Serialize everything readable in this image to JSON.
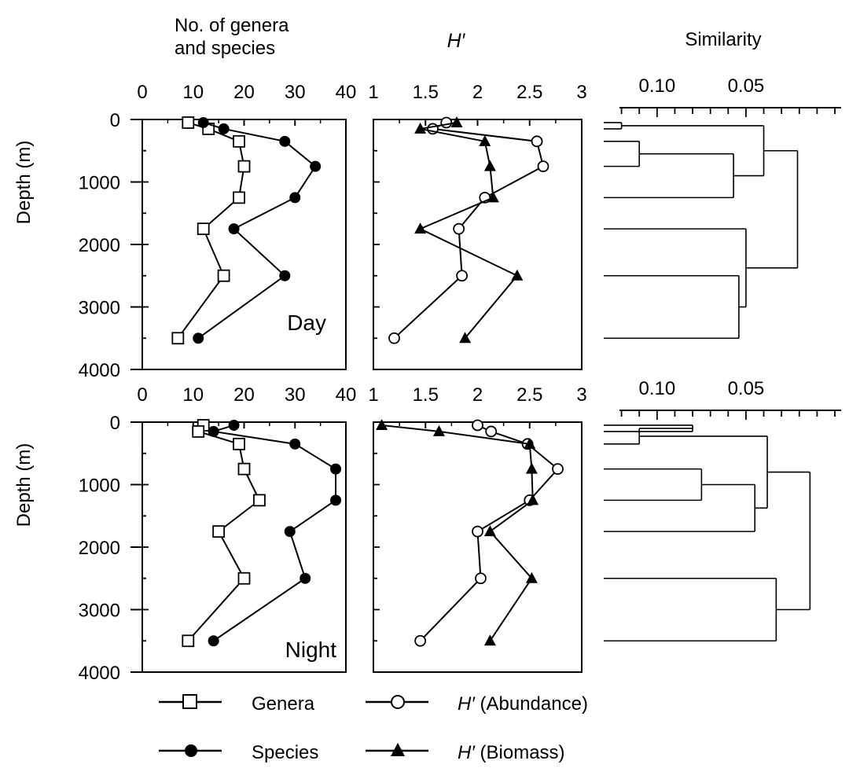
{
  "headers": {
    "count_line1": "No. of genera",
    "count_line2": "and species",
    "diversity": "H′",
    "similarity": "Similarity"
  },
  "axes": {
    "depth_label": "Depth (m)",
    "depth_ticks": [
      "0",
      "1000",
      "2000",
      "3000",
      "4000"
    ],
    "count_ticks": [
      "0",
      "10",
      "20",
      "30",
      "40"
    ],
    "h_ticks": [
      "1",
      "1.5",
      "2",
      "2.5",
      "3"
    ],
    "similarity_ticks": [
      "0.10",
      "0.05"
    ]
  },
  "legend": {
    "genera": "Genera",
    "species": "Species",
    "h_abundance_symbol": "H′",
    "h_abundance_text": "(Abundance)",
    "h_biomass_symbol": "H′",
    "h_biomass_text": "(Biomass)"
  },
  "chart_data": [
    {
      "type": "line",
      "panel": "Day",
      "label": "Day",
      "xlabel": "No. of genera and species",
      "ylabel": "Depth (m)",
      "xlim": [
        0,
        40
      ],
      "ylim": [
        4000,
        0
      ],
      "series": [
        {
          "name": "Genera",
          "marker": "open-square",
          "x": [
            9,
            13,
            19,
            20,
            19,
            12,
            16,
            7
          ],
          "depth": [
            50,
            150,
            350,
            750,
            1250,
            1750,
            2500,
            3500
          ]
        },
        {
          "name": "Species",
          "marker": "filled-circle",
          "x": [
            12,
            16,
            28,
            34,
            30,
            18,
            28,
            11
          ],
          "depth": [
            50,
            150,
            350,
            750,
            1250,
            1750,
            2500,
            3500
          ]
        }
      ]
    },
    {
      "type": "line",
      "panel": "Day",
      "xlabel": "H′",
      "ylabel": "Depth (m)",
      "xlim": [
        1,
        3
      ],
      "ylim": [
        4000,
        0
      ],
      "series": [
        {
          "name": "H′ (Abundance)",
          "marker": "open-circle",
          "x": [
            1.7,
            1.57,
            2.57,
            2.63,
            2.07,
            1.82,
            1.85,
            1.2
          ],
          "depth": [
            50,
            150,
            350,
            750,
            1250,
            1750,
            2500,
            3500
          ]
        },
        {
          "name": "H′ (Biomass)",
          "marker": "filled-triangle",
          "x": [
            1.8,
            1.45,
            2.07,
            2.12,
            2.15,
            1.45,
            2.38,
            1.88
          ],
          "depth": [
            50,
            150,
            350,
            750,
            1250,
            1750,
            2500,
            3500
          ]
        }
      ]
    },
    {
      "type": "dendrogram",
      "panel": "Day",
      "xlabel": "Similarity",
      "xlim": [
        0.13,
        0.0
      ],
      "leaf_depths": [
        50,
        150,
        350,
        750,
        1250,
        1750,
        2500,
        3500
      ],
      "merges": [
        {
          "leaves": [
            50,
            150
          ],
          "similarity": 0.12
        },
        {
          "leaves": [
            350,
            750
          ],
          "similarity": 0.11
        },
        {
          "leaves": [
            350,
            750,
            1250
          ],
          "similarity": 0.057
        },
        {
          "leaves": [
            50,
            150,
            350,
            750,
            1250
          ],
          "similarity": 0.04
        },
        {
          "leaves": [
            2500,
            3500
          ],
          "similarity": 0.054
        },
        {
          "leaves": [
            1750,
            2500,
            3500
          ],
          "similarity": 0.05
        },
        {
          "leaves": [
            50,
            150,
            350,
            750,
            1250,
            1750,
            2500,
            3500
          ],
          "similarity": 0.021
        }
      ]
    },
    {
      "type": "line",
      "panel": "Night",
      "label": "Night",
      "xlabel": "No. of genera and species",
      "ylabel": "Depth (m)",
      "xlim": [
        0,
        40
      ],
      "ylim": [
        4000,
        0
      ],
      "series": [
        {
          "name": "Genera",
          "marker": "open-square",
          "x": [
            12,
            11,
            19,
            20,
            23,
            15,
            20,
            9
          ],
          "depth": [
            50,
            150,
            350,
            750,
            1250,
            1750,
            2500,
            3500
          ]
        },
        {
          "name": "Species",
          "marker": "filled-circle",
          "x": [
            18,
            14,
            30,
            38,
            38,
            29,
            32,
            14
          ],
          "depth": [
            50,
            150,
            350,
            750,
            1250,
            1750,
            2500,
            3500
          ]
        }
      ]
    },
    {
      "type": "line",
      "panel": "Night",
      "xlabel": "H′",
      "ylabel": "Depth (m)",
      "xlim": [
        1,
        3
      ],
      "ylim": [
        4000,
        0
      ],
      "series": [
        {
          "name": "H′ (Abundance)",
          "marker": "open-circle",
          "x": [
            2.0,
            2.13,
            2.48,
            2.77,
            2.5,
            2.0,
            2.03,
            1.45
          ],
          "depth": [
            50,
            150,
            350,
            750,
            1250,
            1750,
            2500,
            3500
          ]
        },
        {
          "name": "H′ (Biomass)",
          "marker": "filled-triangle",
          "x": [
            1.08,
            1.63,
            2.5,
            2.52,
            2.53,
            2.12,
            2.52,
            2.12
          ],
          "depth": [
            50,
            150,
            350,
            750,
            1250,
            1750,
            2500,
            3500
          ]
        }
      ]
    },
    {
      "type": "dendrogram",
      "panel": "Night",
      "xlabel": "Similarity",
      "xlim": [
        0.13,
        0.0
      ],
      "leaf_depths": [
        50,
        150,
        350,
        750,
        1250,
        1750,
        2500,
        3500
      ],
      "merges": [
        {
          "leaves": [
            50,
            150
          ],
          "similarity": 0.08
        },
        {
          "leaves": [
            50,
            150,
            350
          ],
          "similarity": 0.11
        },
        {
          "leaves": [
            750,
            1250
          ],
          "similarity": 0.075
        },
        {
          "leaves": [
            750,
            1250,
            1750
          ],
          "similarity": 0.045
        },
        {
          "leaves": [
            50,
            150,
            350,
            750,
            1250,
            1750
          ],
          "similarity": 0.038
        },
        {
          "leaves": [
            2500,
            3500
          ],
          "similarity": 0.033
        },
        {
          "leaves": [
            50,
            150,
            350,
            750,
            1250,
            1750,
            2500,
            3500
          ],
          "similarity": 0.014
        }
      ]
    }
  ]
}
